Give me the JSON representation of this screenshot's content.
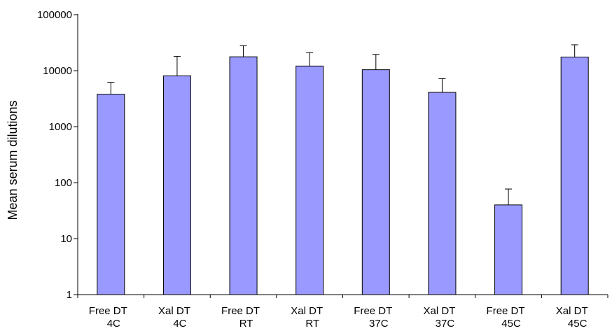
{
  "chart_data": {
    "type": "bar",
    "title": "",
    "xlabel": "",
    "ylabel": "Mean serum dilutions",
    "y_scale": "log",
    "ylim": [
      1,
      100000
    ],
    "y_ticks": [
      {
        "value": 1,
        "label": "1"
      },
      {
        "value": 10,
        "label": "10"
      },
      {
        "value": 100,
        "label": "100"
      },
      {
        "value": 1000,
        "label": "1000"
      },
      {
        "value": 10000,
        "label": "10000"
      },
      {
        "value": 100000,
        "label": "100000"
      }
    ],
    "grid": false,
    "legend": "none",
    "categories": [
      {
        "line1": "Free DT",
        "line2": "4C"
      },
      {
        "line1": "Xal DT",
        "line2": "4C"
      },
      {
        "line1": "Free DT",
        "line2": "RT"
      },
      {
        "line1": "Xal DT",
        "line2": "RT"
      },
      {
        "line1": "Free DT",
        "line2": "37C"
      },
      {
        "line1": "Xal DT",
        "line2": "37C"
      },
      {
        "line1": "Free DT",
        "line2": "45C"
      },
      {
        "line1": "Xal DT",
        "line2": "45C"
      }
    ],
    "values": [
      3800,
      8100,
      17700,
      12100,
      10400,
      4100,
      40,
      17500
    ],
    "error_upper": [
      6200,
      18000,
      28000,
      21000,
      19500,
      7200,
      77,
      29000
    ],
    "bar_color": "#9999ff",
    "bar_edge_color": "#000000"
  }
}
